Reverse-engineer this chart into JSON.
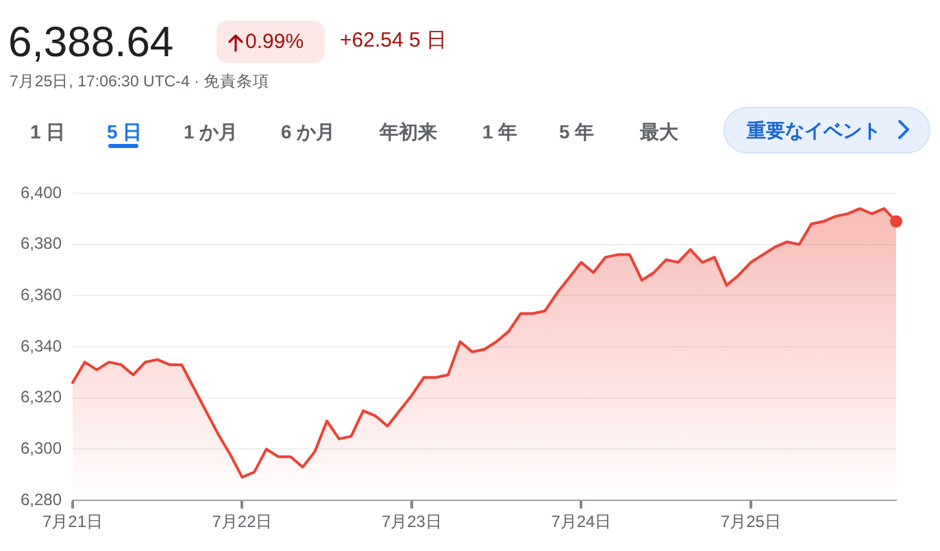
{
  "chart_data": {
    "type": "area",
    "title": "6,388.64",
    "subtitle": "7月25日, 17:06:30 UTC-4 · 免責条項",
    "annotations": [
      "0.99%",
      "+62.54 5 日",
      "1 日",
      "5 日",
      "1 か月",
      "6 か月",
      "年初来",
      "1 年",
      "5 年",
      "最大",
      "重要なイベント"
    ],
    "categories": [
      "7月21日",
      null,
      null,
      null,
      null,
      null,
      null,
      null,
      null,
      null,
      null,
      null,
      null,
      null,
      "7月22日",
      null,
      null,
      null,
      null,
      null,
      null,
      null,
      null,
      null,
      null,
      null,
      null,
      null,
      "7月23日",
      null,
      null,
      null,
      null,
      null,
      null,
      null,
      null,
      null,
      null,
      null,
      null,
      null,
      "7月24日",
      null,
      null,
      null,
      null,
      null,
      null,
      null,
      null,
      null,
      null,
      null,
      null,
      null,
      "7月25日",
      null,
      null,
      null,
      null,
      null,
      null,
      null,
      null,
      null,
      null,
      null,
      null
    ],
    "series": [
      {
        "color": "#ea4335",
        "values": [
          6326,
          6334,
          6331,
          6334,
          6333,
          6329,
          6334,
          6335,
          6333,
          6333,
          6324,
          6315,
          6306,
          6298,
          6289,
          6291,
          6300,
          6297,
          6297,
          6293,
          6299,
          6311,
          6304,
          6305,
          6315,
          6313,
          6309,
          6315,
          6321,
          6328,
          6328,
          6329,
          6342,
          6338,
          6339,
          6342,
          6346,
          6353,
          6353,
          6354,
          6361,
          6367,
          6373,
          6369,
          6375,
          6376,
          6376,
          6366,
          6369,
          6374,
          6373,
          6378,
          6373,
          6375,
          6364,
          6368,
          6373,
          6376,
          6379,
          6381,
          6380,
          6388,
          6389,
          6391,
          6392,
          6394,
          6392,
          6394,
          6389
        ]
      }
    ],
    "ylim": [
      6280,
      6400
    ],
    "yticks": [
      {
        "value": 6280,
        "label": "6,280"
      },
      {
        "value": 6300,
        "label": "6,300"
      },
      {
        "value": 6320,
        "label": "6,320"
      },
      {
        "value": 6340,
        "label": "6,340"
      },
      {
        "value": 6360,
        "label": "6,360"
      },
      {
        "value": 6380,
        "label": "6,380"
      },
      {
        "value": 6400,
        "label": "6,400"
      }
    ],
    "grid": "y",
    "legend": false
  }
}
